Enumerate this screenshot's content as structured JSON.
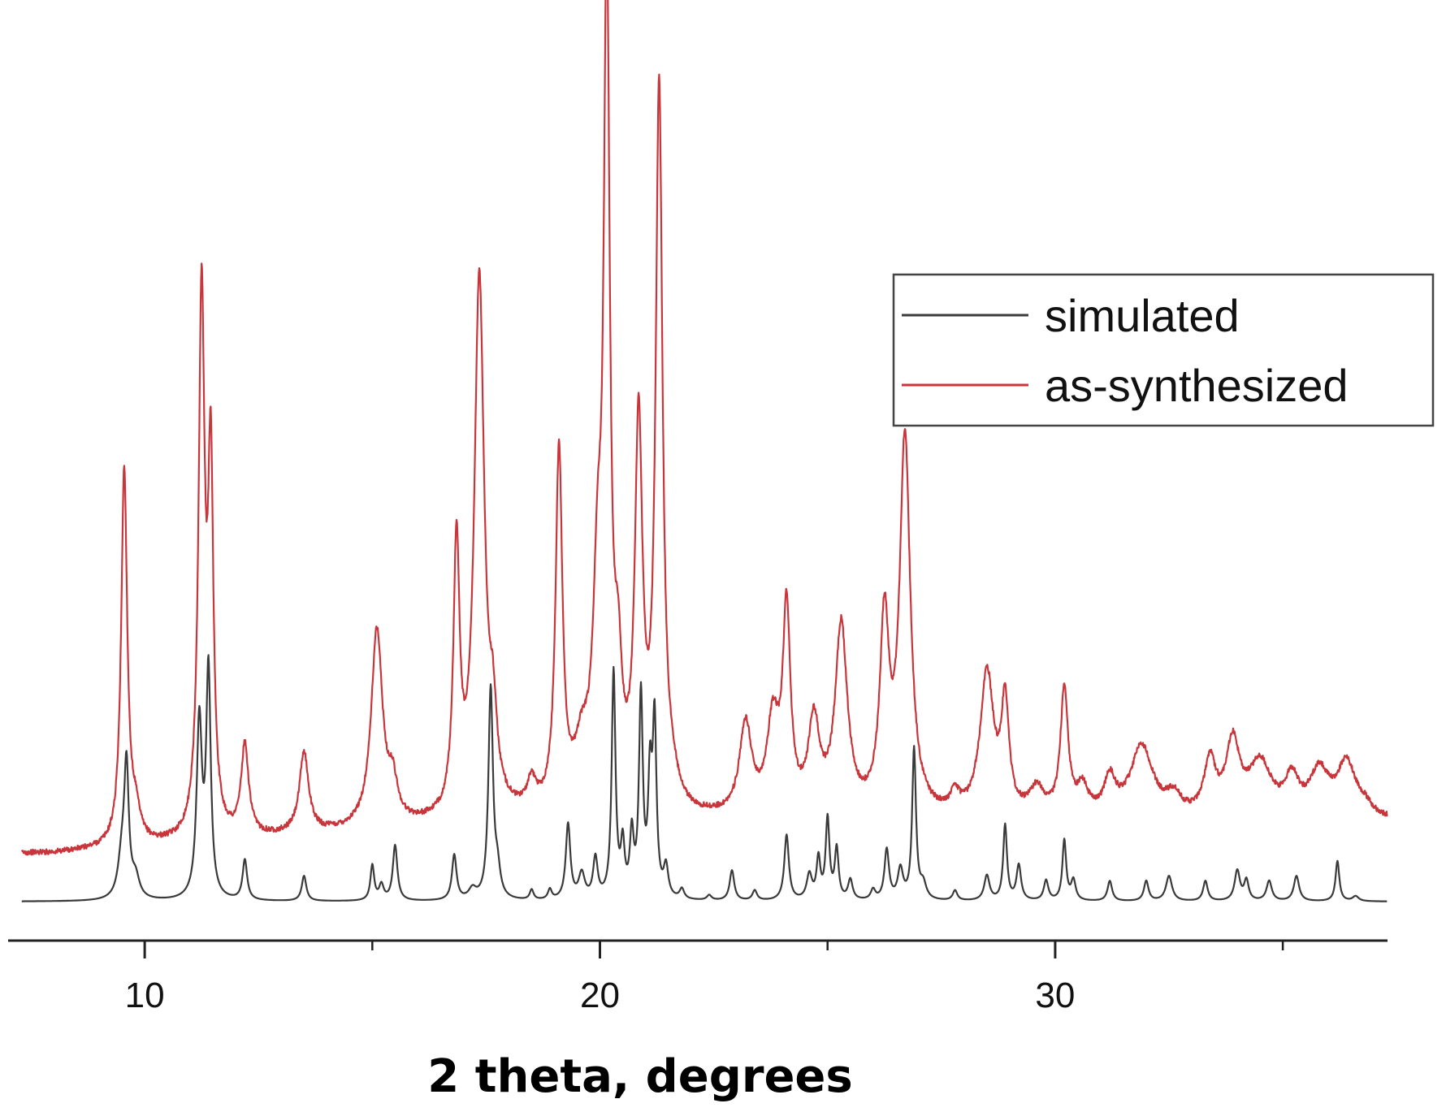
{
  "chart_data": {
    "type": "line",
    "title": "",
    "xlabel": "2 theta, degrees",
    "ylabel": "",
    "xlim": [
      7,
      37.3
    ],
    "xticks": [
      10,
      20,
      30
    ],
    "minor_xticks": [
      15,
      25,
      35
    ],
    "grid": false,
    "legend": {
      "placement": "top-right",
      "entries": [
        "simulated",
        "as-synthesized"
      ]
    },
    "series": [
      {
        "name": "simulated",
        "color": "#3a3a3a",
        "baseline": 0.0,
        "peaks": [
          [
            9.5,
            0.08,
            0.1
          ],
          [
            9.6,
            0.25,
            0.06
          ],
          [
            9.8,
            0.04,
            0.1
          ],
          [
            11.2,
            0.35,
            0.07
          ],
          [
            11.4,
            0.45,
            0.06
          ],
          [
            12.2,
            0.08,
            0.06
          ],
          [
            13.5,
            0.05,
            0.06
          ],
          [
            15.0,
            0.07,
            0.05
          ],
          [
            15.2,
            0.03,
            0.06
          ],
          [
            15.5,
            0.11,
            0.06
          ],
          [
            16.8,
            0.09,
            0.06
          ],
          [
            17.2,
            0.02,
            0.1
          ],
          [
            17.6,
            0.42,
            0.06
          ],
          [
            17.75,
            0.05,
            0.07
          ],
          [
            18.5,
            0.02,
            0.05
          ],
          [
            18.9,
            0.02,
            0.05
          ],
          [
            19.3,
            0.15,
            0.06
          ],
          [
            19.6,
            0.05,
            0.08
          ],
          [
            19.9,
            0.08,
            0.06
          ],
          [
            20.3,
            0.45,
            0.05
          ],
          [
            20.5,
            0.1,
            0.05
          ],
          [
            20.7,
            0.12,
            0.05
          ],
          [
            20.9,
            0.4,
            0.05
          ],
          [
            21.1,
            0.22,
            0.05
          ],
          [
            21.2,
            0.34,
            0.05
          ],
          [
            21.45,
            0.06,
            0.06
          ],
          [
            21.8,
            0.02,
            0.06
          ],
          [
            22.4,
            0.01,
            0.06
          ],
          [
            22.9,
            0.06,
            0.06
          ],
          [
            23.4,
            0.02,
            0.06
          ],
          [
            24.1,
            0.13,
            0.06
          ],
          [
            24.6,
            0.05,
            0.07
          ],
          [
            24.8,
            0.08,
            0.05
          ],
          [
            25.0,
            0.16,
            0.05
          ],
          [
            25.2,
            0.1,
            0.05
          ],
          [
            25.5,
            0.04,
            0.06
          ],
          [
            26.0,
            0.02,
            0.06
          ],
          [
            26.3,
            0.1,
            0.06
          ],
          [
            26.6,
            0.06,
            0.07
          ],
          [
            26.9,
            0.3,
            0.05
          ],
          [
            27.1,
            0.03,
            0.08
          ],
          [
            27.8,
            0.02,
            0.06
          ],
          [
            28.5,
            0.05,
            0.07
          ],
          [
            28.9,
            0.15,
            0.05
          ],
          [
            29.2,
            0.07,
            0.06
          ],
          [
            29.8,
            0.04,
            0.06
          ],
          [
            30.2,
            0.12,
            0.05
          ],
          [
            30.4,
            0.04,
            0.06
          ],
          [
            31.2,
            0.04,
            0.06
          ],
          [
            32.0,
            0.04,
            0.06
          ],
          [
            32.5,
            0.05,
            0.08
          ],
          [
            33.3,
            0.04,
            0.06
          ],
          [
            34.0,
            0.06,
            0.07
          ],
          [
            34.2,
            0.04,
            0.06
          ],
          [
            34.7,
            0.04,
            0.07
          ],
          [
            35.3,
            0.05,
            0.07
          ],
          [
            36.2,
            0.08,
            0.05
          ],
          [
            36.6,
            0.01,
            0.08
          ]
        ]
      },
      {
        "name": "as-synthesized",
        "color": "#c8353a",
        "baseline": 0.03,
        "peaks": [
          [
            9.55,
            0.42,
            0.08
          ],
          [
            9.8,
            0.03,
            0.12
          ],
          [
            11.25,
            0.6,
            0.08
          ],
          [
            11.45,
            0.4,
            0.07
          ],
          [
            12.2,
            0.1,
            0.1
          ],
          [
            13.5,
            0.09,
            0.12
          ],
          [
            15.1,
            0.22,
            0.15
          ],
          [
            15.45,
            0.04,
            0.12
          ],
          [
            16.85,
            0.3,
            0.08
          ],
          [
            17.35,
            0.6,
            0.13
          ],
          [
            17.65,
            0.08,
            0.1
          ],
          [
            18.5,
            0.03,
            0.12
          ],
          [
            19.1,
            0.4,
            0.09
          ],
          [
            19.6,
            0.06,
            0.2
          ],
          [
            19.95,
            0.22,
            0.12
          ],
          [
            20.15,
            0.9,
            0.08
          ],
          [
            20.4,
            0.12,
            0.1
          ],
          [
            20.85,
            0.42,
            0.1
          ],
          [
            21.3,
            0.8,
            0.09
          ],
          [
            21.6,
            0.02,
            0.15
          ],
          [
            23.2,
            0.1,
            0.16
          ],
          [
            23.8,
            0.1,
            0.16
          ],
          [
            24.1,
            0.22,
            0.1
          ],
          [
            24.7,
            0.1,
            0.15
          ],
          [
            25.3,
            0.21,
            0.16
          ],
          [
            26.25,
            0.21,
            0.12
          ],
          [
            26.7,
            0.42,
            0.14
          ],
          [
            27.8,
            0.02,
            0.12
          ],
          [
            28.5,
            0.16,
            0.18
          ],
          [
            28.9,
            0.12,
            0.1
          ],
          [
            29.6,
            0.03,
            0.2
          ],
          [
            30.2,
            0.14,
            0.1
          ],
          [
            30.6,
            0.03,
            0.15
          ],
          [
            31.2,
            0.04,
            0.15
          ],
          [
            31.9,
            0.08,
            0.3
          ],
          [
            32.6,
            0.02,
            0.2
          ],
          [
            33.4,
            0.06,
            0.15
          ],
          [
            33.9,
            0.08,
            0.18
          ],
          [
            34.5,
            0.06,
            0.3
          ],
          [
            35.2,
            0.04,
            0.18
          ],
          [
            35.8,
            0.05,
            0.25
          ],
          [
            36.4,
            0.06,
            0.25
          ],
          [
            36.8,
            0.01,
            0.2
          ]
        ]
      }
    ]
  }
}
